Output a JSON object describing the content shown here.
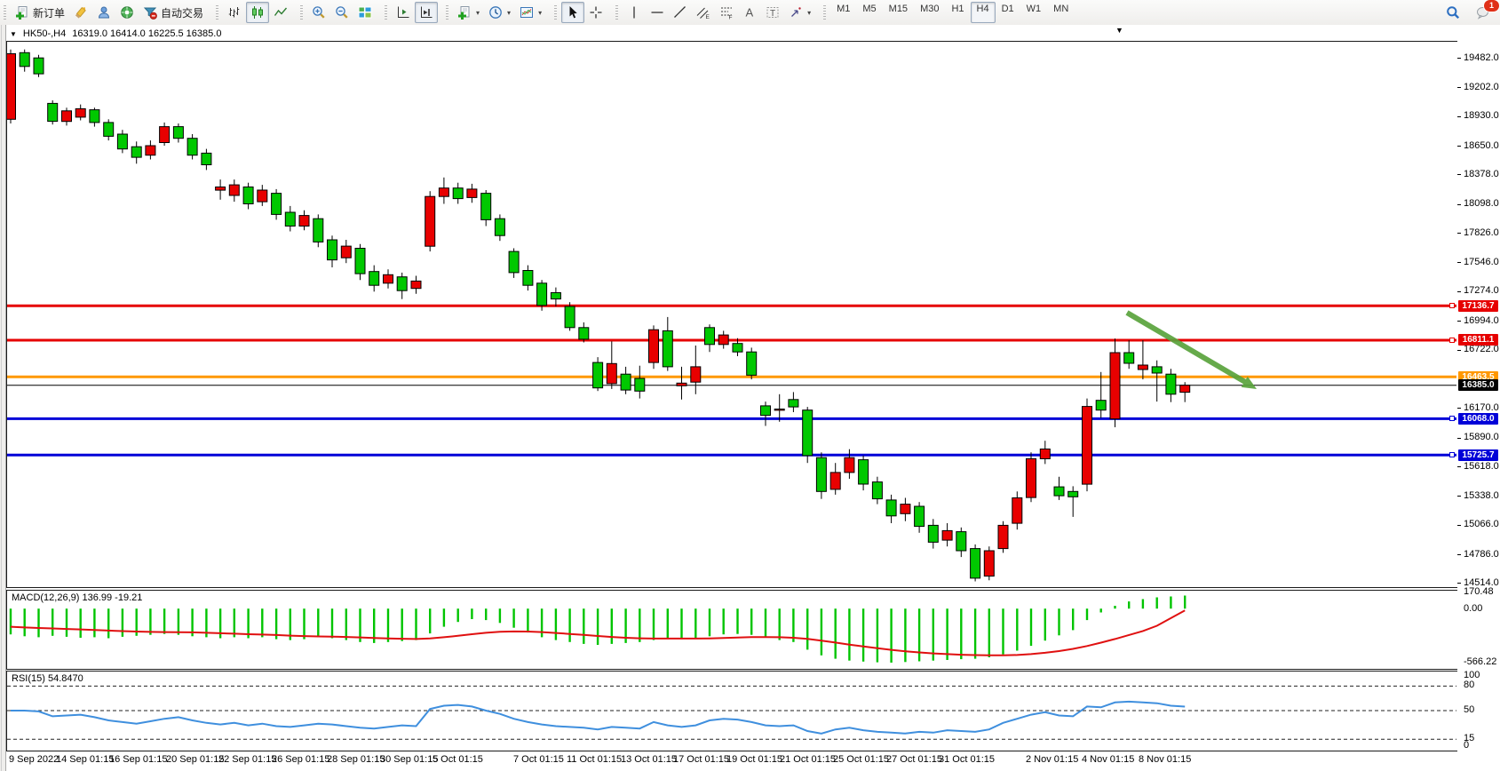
{
  "window": {
    "symbol_period": "HK50-,H4",
    "ohlc_text": "16319.0 16414.0 16225.5 16385.0",
    "dropdown_icon": "▼",
    "bar_marker": "▼"
  },
  "toolbar": {
    "groups": [
      {
        "items": [
          {
            "name": "new-order",
            "icon": "doc-plus",
            "label": "新订单"
          },
          {
            "name": "highlighter",
            "icon": "crayon"
          },
          {
            "name": "profile",
            "icon": "profile"
          },
          {
            "name": "news",
            "icon": "speaker"
          },
          {
            "name": "auto-trading",
            "icon": "funnel",
            "label": "自动交易"
          }
        ]
      },
      {
        "items": [
          {
            "name": "bar-chart",
            "icon": "bars"
          },
          {
            "name": "candlestick-chart",
            "icon": "candles",
            "active": true
          },
          {
            "name": "line-chart",
            "icon": "polyline"
          }
        ]
      },
      {
        "items": [
          {
            "name": "zoom-in",
            "icon": "zoom-in"
          },
          {
            "name": "zoom-out",
            "icon": "zoom-out"
          },
          {
            "name": "tile-windows",
            "icon": "tile"
          }
        ]
      },
      {
        "items": [
          {
            "name": "auto-scroll",
            "icon": "axis-end"
          },
          {
            "name": "chart-shift",
            "icon": "axis-shift",
            "active": true
          }
        ]
      },
      {
        "items": [
          {
            "name": "indicators",
            "icon": "doc-plus",
            "caret": true
          },
          {
            "name": "periods",
            "icon": "clock",
            "caret": true
          },
          {
            "name": "templates",
            "icon": "template",
            "caret": true
          }
        ]
      },
      {
        "items": [
          {
            "name": "cursor",
            "icon": "cursor",
            "active": true
          },
          {
            "name": "crosshair",
            "icon": "crosshair"
          }
        ]
      },
      {
        "items": [
          {
            "name": "vertical-line",
            "icon": "vline"
          },
          {
            "name": "horizontal-line",
            "icon": "hline"
          },
          {
            "name": "trend-line",
            "icon": "tline"
          },
          {
            "name": "equidistant-channel",
            "icon": "channel"
          },
          {
            "name": "fibonacci",
            "icon": "fibo"
          },
          {
            "name": "text",
            "icon": "textA"
          },
          {
            "name": "text-label",
            "icon": "textT"
          },
          {
            "name": "arrows",
            "icon": "arrows",
            "caret": true
          }
        ]
      }
    ],
    "timeframes": [
      "M1",
      "M5",
      "M15",
      "M30",
      "H1",
      "H4",
      "D1",
      "W1",
      "MN"
    ],
    "active_timeframe": "H4",
    "chat_badge": "1"
  },
  "chart_data": {
    "type": "candlestick",
    "symbol": "HK50-",
    "period": "H4",
    "current_bar": {
      "open": 16319.0,
      "high": 16414.0,
      "low": 16225.5,
      "close": 16385.0
    },
    "colors": {
      "up": "#e80000",
      "down": "#00c800",
      "wick": "#000000",
      "macd_hist": "#00c400",
      "macd_signal": "#e01010",
      "rsi": "#3f8fde",
      "arrow": "#5aa33c"
    },
    "price_axis_ticks": [
      19482.0,
      19202.0,
      18930.0,
      18650.0,
      18378.0,
      18098.0,
      17826.0,
      17546.0,
      17274.0,
      16994.0,
      16722.0,
      16170.0,
      15890.0,
      15618.0,
      15338.0,
      15066.0,
      14786.0,
      14514.0
    ],
    "ylim": [
      14514.0,
      19482.0
    ],
    "hlines": [
      {
        "price": 17136.7,
        "color": "#e60000",
        "lw": 3,
        "tag": "17136.7",
        "handle": true
      },
      {
        "price": 16811.1,
        "color": "#e60000",
        "lw": 3,
        "tag": "16811.1",
        "handle": true
      },
      {
        "price": 16463.5,
        "color": "#ff9800",
        "lw": 3,
        "tag": "16463.5",
        "handle": false
      },
      {
        "price": 16385.0,
        "color": "#000000",
        "lw": 1,
        "tag": "16385.0",
        "handle": false
      },
      {
        "price": 16068.0,
        "color": "#0000d8",
        "lw": 3,
        "tag": "16068.0",
        "handle": true
      },
      {
        "price": 15725.7,
        "color": "#0000d8",
        "lw": 3,
        "tag": "15725.7",
        "handle": true
      }
    ],
    "arrow_annotation": {
      "line": [
        1269,
        352,
        1402,
        430
      ],
      "head": [
        [
          1415,
          438
        ],
        [
          1397.7,
          435.9
        ],
        [
          1404.8,
          423.9
        ]
      ]
    },
    "candles": [
      [
        18900,
        19560,
        18860,
        19520
      ],
      [
        19530,
        19560,
        19350,
        19400
      ],
      [
        19480,
        19510,
        19300,
        19330
      ],
      [
        19050,
        19080,
        18850,
        18880
      ],
      [
        18880,
        19010,
        18840,
        18980
      ],
      [
        18920,
        19040,
        18890,
        19000
      ],
      [
        18990,
        19010,
        18830,
        18870
      ],
      [
        18870,
        18900,
        18700,
        18740
      ],
      [
        18760,
        18800,
        18580,
        18620
      ],
      [
        18640,
        18690,
        18480,
        18540
      ],
      [
        18560,
        18700,
        18520,
        18650
      ],
      [
        18680,
        18870,
        18650,
        18830
      ],
      [
        18830,
        18860,
        18680,
        18720
      ],
      [
        18720,
        18760,
        18520,
        18560
      ],
      [
        18580,
        18620,
        18420,
        18470
      ],
      [
        18230,
        18330,
        18140,
        18260
      ],
      [
        18180,
        18330,
        18120,
        18280
      ],
      [
        18260,
        18300,
        18050,
        18100
      ],
      [
        18120,
        18280,
        18080,
        18230
      ],
      [
        18200,
        18240,
        17950,
        18000
      ],
      [
        18020,
        18080,
        17840,
        17890
      ],
      [
        17890,
        18040,
        17850,
        17990
      ],
      [
        17960,
        18000,
        17690,
        17740
      ],
      [
        17760,
        17800,
        17500,
        17570
      ],
      [
        17590,
        17760,
        17540,
        17700
      ],
      [
        17680,
        17720,
        17380,
        17440
      ],
      [
        17460,
        17520,
        17270,
        17330
      ],
      [
        17350,
        17480,
        17300,
        17430
      ],
      [
        17410,
        17450,
        17200,
        17280
      ],
      [
        17300,
        17420,
        17250,
        17370
      ],
      [
        17700,
        18220,
        17650,
        18170
      ],
      [
        18170,
        18350,
        18100,
        18250
      ],
      [
        18250,
        18300,
        18100,
        18150
      ],
      [
        18160,
        18290,
        18110,
        18240
      ],
      [
        18200,
        18230,
        17890,
        17950
      ],
      [
        17960,
        18000,
        17750,
        17800
      ],
      [
        17650,
        17680,
        17400,
        17450
      ],
      [
        17470,
        17520,
        17280,
        17330
      ],
      [
        17350,
        17380,
        17090,
        17140
      ],
      [
        17260,
        17310,
        17130,
        17200
      ],
      [
        17130,
        17170,
        16900,
        16930
      ],
      [
        16930,
        16980,
        16790,
        16820
      ],
      [
        16600,
        16650,
        16330,
        16360
      ],
      [
        16400,
        16800,
        16350,
        16590
      ],
      [
        16490,
        16560,
        16300,
        16340
      ],
      [
        16450,
        16570,
        16260,
        16330
      ],
      [
        16600,
        16950,
        16540,
        16910
      ],
      [
        16900,
        17030,
        16520,
        16560
      ],
      [
        16380,
        16560,
        16250,
        16405
      ],
      [
        16415,
        16760,
        16300,
        16560
      ],
      [
        16930,
        16960,
        16700,
        16770
      ],
      [
        16770,
        16900,
        16730,
        16860
      ],
      [
        16780,
        16830,
        16660,
        16700
      ],
      [
        16700,
        16740,
        16440,
        16480
      ],
      [
        16190,
        16230,
        16000,
        16100
      ],
      [
        16150,
        16300,
        16040,
        16160
      ],
      [
        16250,
        16320,
        16130,
        16180
      ],
      [
        16150,
        16180,
        15650,
        15720
      ],
      [
        15700,
        15750,
        15310,
        15380
      ],
      [
        15400,
        15650,
        15350,
        15560
      ],
      [
        15560,
        15780,
        15500,
        15700
      ],
      [
        15680,
        15720,
        15390,
        15450
      ],
      [
        15470,
        15520,
        15260,
        15310
      ],
      [
        15300,
        15350,
        15080,
        15150
      ],
      [
        15170,
        15320,
        15100,
        15260
      ],
      [
        15240,
        15280,
        14990,
        15050
      ],
      [
        15060,
        15120,
        14840,
        14900
      ],
      [
        14920,
        15080,
        14860,
        15010
      ],
      [
        15000,
        15040,
        14760,
        14820
      ],
      [
        14840,
        14880,
        14530,
        14560
      ],
      [
        14580,
        14860,
        14540,
        14820
      ],
      [
        14840,
        15100,
        14800,
        15060
      ],
      [
        15080,
        15380,
        15020,
        15320
      ],
      [
        15323,
        15750,
        15280,
        15690
      ],
      [
        15690,
        15860,
        15640,
        15782
      ],
      [
        15424,
        15520,
        15300,
        15340
      ],
      [
        15380,
        15430,
        15140,
        15330
      ],
      [
        15449,
        16260,
        15382,
        16184
      ],
      [
        16242,
        16510,
        16075,
        16150
      ],
      [
        16066,
        16827,
        15988,
        16693
      ],
      [
        16693,
        16810,
        16540,
        16592
      ],
      [
        16534,
        16810,
        16440,
        16576
      ],
      [
        16560,
        16620,
        16230,
        16500
      ],
      [
        16490,
        16540,
        16225,
        16300
      ],
      [
        16319,
        16414,
        16225.5,
        16385
      ]
    ],
    "time_axis": {
      "labels": [
        "9 Sep 2022",
        "14 Sep 01:15",
        "16 Sep 01:15",
        "20 Sep 01:15",
        "22 Sep 01:15",
        "26 Sep 01:15",
        "28 Sep 01:15",
        "30 Sep 01:15",
        "5 Oct 01:15",
        "7 Oct 01:15",
        "11 Oct 01:15",
        "13 Oct 01:15",
        "17 Oct 01:15",
        "19 Oct 01:15",
        "21 Oct 01:15",
        "25 Oct 01:15",
        "27 Oct 01:15",
        "31 Oct 01:15",
        "2 Nov 01:15",
        "4 Nov 01:15",
        "8 Nov 01:15"
      ],
      "x": [
        10,
        63,
        123,
        187,
        246,
        306,
        368,
        428,
        487,
        578,
        638,
        699,
        758,
        818,
        878,
        938,
        998,
        1057,
        1155,
        1218,
        1282
      ]
    },
    "indicators": {
      "macd": {
        "label": "MACD(12,26,9) 136.99 -19.21",
        "params": "12,26,9",
        "main_value": 136.99,
        "signal_value": -19.21,
        "axis_labels": [
          170.48,
          0.0,
          -566.22
        ],
        "histogram": [
          -270,
          -290,
          -300,
          -285,
          -295,
          -305,
          -300,
          -310,
          -295,
          -285,
          -275,
          -265,
          -275,
          -290,
          -300,
          -310,
          -300,
          -310,
          -300,
          -320,
          -330,
          -320,
          -300,
          -310,
          -330,
          -350,
          -360,
          -350,
          -340,
          -330,
          -260,
          -190,
          -140,
          -110,
          -120,
          -150,
          -200,
          -250,
          -300,
          -330,
          -350,
          -370,
          -380,
          -370,
          -360,
          -350,
          -330,
          -310,
          -320,
          -310,
          -290,
          -270,
          -265,
          -275,
          -300,
          -330,
          -350,
          -430,
          -490,
          -525,
          -545,
          -555,
          -562,
          -566,
          -560,
          -552,
          -545,
          -538,
          -530,
          -525,
          -510,
          -480,
          -440,
          -390,
          -335,
          -280,
          -225,
          -120,
          -40,
          30,
          75,
          100,
          118,
          128,
          137
        ],
        "signal": [
          -190,
          -197,
          -203,
          -208,
          -213,
          -218,
          -224,
          -230,
          -236,
          -240,
          -244,
          -246,
          -247,
          -249,
          -253,
          -258,
          -263,
          -268,
          -272,
          -277,
          -283,
          -288,
          -291,
          -293,
          -297,
          -302,
          -308,
          -313,
          -316,
          -318,
          -312,
          -300,
          -285,
          -268,
          -253,
          -243,
          -239,
          -240,
          -246,
          -255,
          -265,
          -276,
          -287,
          -297,
          -305,
          -311,
          -314,
          -314,
          -314,
          -314,
          -312,
          -308,
          -303,
          -299,
          -298,
          -300,
          -305,
          -317,
          -335,
          -356,
          -377,
          -397,
          -415,
          -432,
          -447,
          -459,
          -469,
          -477,
          -483,
          -487,
          -490,
          -490,
          -486,
          -477,
          -463,
          -445,
          -422,
          -392,
          -357,
          -318,
          -277,
          -235,
          -180,
          -100,
          -19.21
        ]
      },
      "rsi": {
        "label": "RSI(15) 54.8470",
        "params": "15",
        "value": 54.847,
        "levels": [
          80,
          50,
          15
        ],
        "axis_labels": [
          100,
          80,
          50,
          15,
          0
        ],
        "series": [
          50,
          50,
          49,
          43,
          44,
          45,
          42,
          38,
          36,
          34,
          37,
          40,
          42,
          38,
          35,
          33,
          35,
          32,
          34,
          31,
          30,
          32,
          34,
          33,
          31,
          29,
          28,
          30,
          32,
          31,
          52,
          56,
          57,
          55,
          50,
          46,
          40,
          36,
          33,
          31,
          30,
          29,
          27,
          30,
          29,
          28,
          36,
          32,
          30,
          32,
          38,
          40,
          39,
          36,
          32,
          31,
          32,
          25,
          22,
          27,
          29,
          26,
          24,
          23,
          22,
          24,
          23,
          26,
          25,
          24,
          27,
          35,
          40,
          45,
          48,
          44,
          43,
          55,
          54,
          60,
          61,
          60,
          59,
          56,
          54.85
        ]
      }
    }
  }
}
